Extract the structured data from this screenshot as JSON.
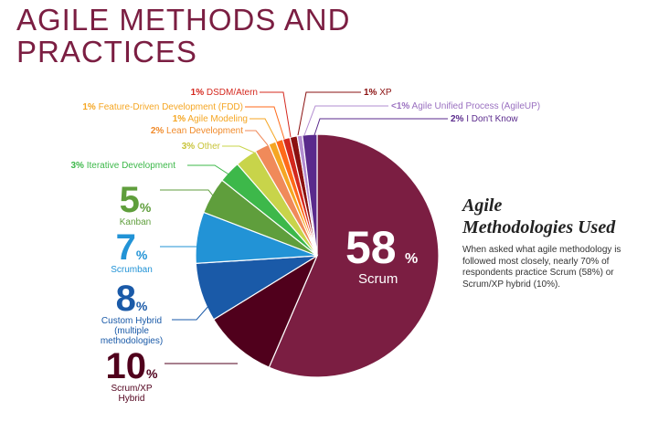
{
  "title": "AGILE METHODS AND PRACTICES",
  "sidebar": {
    "heading_line1": "Agile",
    "heading_line2": "Methodologies Used",
    "body": "When asked what agile methodology is followed most closely, nearly 70% of respondents practice Scrum (58%) or Scrum/XP hybrid (10%)."
  },
  "chart_data": {
    "type": "pie",
    "title": "Agile Methodologies Used",
    "slices": [
      {
        "name": "Scrum",
        "value": 58,
        "display": "58%",
        "color": "#7b1e42"
      },
      {
        "name": "Scrum/XP Hybrid",
        "value": 10,
        "display": "10%",
        "color": "#50001c"
      },
      {
        "name": "Custom Hybrid (multiple methodologies)",
        "value": 8,
        "display": "8%",
        "color": "#1a5aa8"
      },
      {
        "name": "Scrumban",
        "value": 7,
        "display": "7%",
        "color": "#2293d6"
      },
      {
        "name": "Kanban",
        "value": 5,
        "display": "5%",
        "color": "#5f9e3c"
      },
      {
        "name": "Iterative Development",
        "value": 3,
        "display": "3%",
        "color": "#3db84a"
      },
      {
        "name": "Other",
        "value": 3,
        "display": "3%",
        "color": "#c8d44a"
      },
      {
        "name": "Lean Development",
        "value": 2,
        "display": "2%",
        "color": "#f08a5a"
      },
      {
        "name": "Agile Modeling",
        "value": 1,
        "display": "1%",
        "color": "#f5a623"
      },
      {
        "name": "Feature-Driven Development (FDD)",
        "value": 1,
        "display": "1%",
        "color": "#ff6a1a"
      },
      {
        "name": "DSDM/Atern",
        "value": 1,
        "display": "1%",
        "color": "#d4281e"
      },
      {
        "name": "XP",
        "value": 1,
        "display": "1%",
        "color": "#8a1010"
      },
      {
        "name": "Agile Unified Process (AgileUP)",
        "value": 0.7,
        "display": "<1%",
        "color": "#b28cd0"
      },
      {
        "name": "I Don't Know",
        "value": 2,
        "display": "2%",
        "color": "#5a2a8c"
      }
    ],
    "big_labels": {
      "kanban": {
        "num": "5",
        "pct": "%",
        "name": "Kanban"
      },
      "scrumban": {
        "num": "7",
        "pct": "%",
        "name": "Scrumban"
      },
      "custom": {
        "num": "8",
        "pct": "%",
        "name1": "Custom Hybrid",
        "name2": "(multiple",
        "name3": "methodologies)"
      },
      "scrumxp": {
        "num": "10",
        "pct": "%",
        "name1": "Scrum/XP",
        "name2": "Hybrid"
      },
      "scrum": {
        "num": "58",
        "pct": "%",
        "name": "Scrum"
      }
    },
    "small_labels": {
      "dsdm": {
        "pct": "1%",
        "name": "DSDM/Atern"
      },
      "fdd": {
        "pct": "1%",
        "name": "Feature-Driven Development (FDD)"
      },
      "modeling": {
        "pct": "1%",
        "name": "Agile Modeling"
      },
      "lean": {
        "pct": "2%",
        "name": "Lean Development"
      },
      "other": {
        "pct": "3%",
        "name": "Other"
      },
      "iterative": {
        "pct": "3%",
        "name": "Iterative Development"
      },
      "xp": {
        "pct": "1%",
        "name": "XP"
      },
      "aup": {
        "pct": "<1%",
        "name": "Agile Unified Process (AgileUP)"
      },
      "idk": {
        "pct": "2%",
        "name": "I Don't Know"
      }
    }
  }
}
